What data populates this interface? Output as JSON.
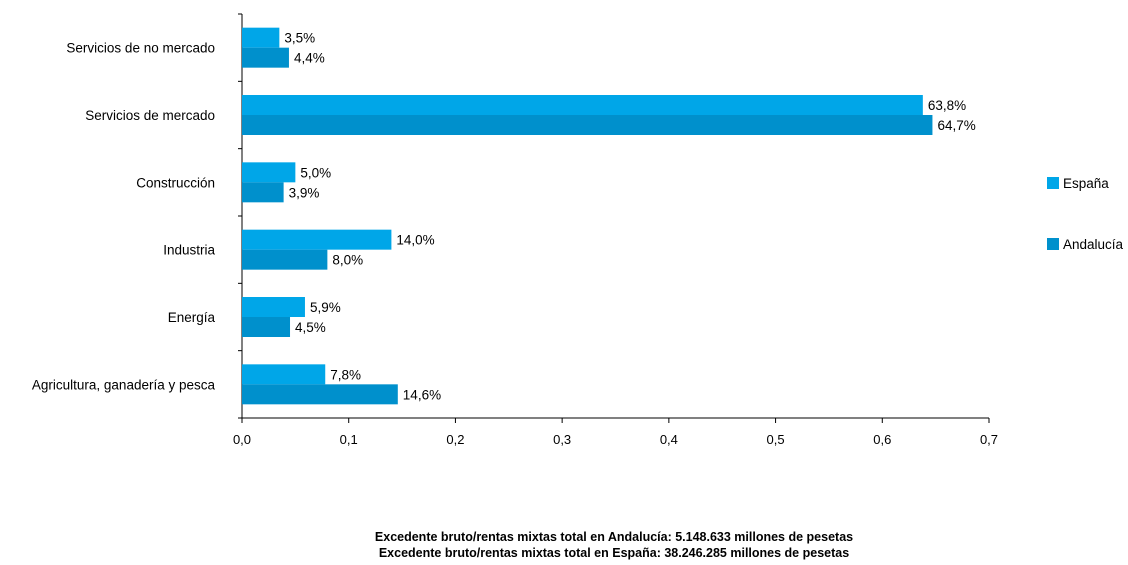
{
  "chart_data": {
    "type": "bar",
    "orientation": "horizontal",
    "categories": [
      "Servicios de no mercado",
      "Servicios de mercado",
      "Construcción",
      "Industria",
      "Energía",
      "Agricultura, ganadería y pesca"
    ],
    "series": [
      {
        "name": "España",
        "color": "#00A6E8",
        "values": [
          0.035,
          0.638,
          0.05,
          0.14,
          0.059,
          0.078
        ],
        "labels": [
          "3,5%",
          "63,8%",
          "5,0%",
          "14,0%",
          "5,9%",
          "7,8%"
        ]
      },
      {
        "name": "Andalucía",
        "color": "#0090CC",
        "values": [
          0.044,
          0.647,
          0.039,
          0.08,
          0.045,
          0.146
        ],
        "labels": [
          "4,4%",
          "64,7%",
          "3,9%",
          "8,0%",
          "4,5%",
          "14,6%"
        ]
      }
    ],
    "x_ticks": [
      "0,0",
      "0,1",
      "0,2",
      "0,3",
      "0,4",
      "0,5",
      "0,6",
      "0,7"
    ],
    "xlim": [
      0,
      0.7
    ],
    "legend_position": "right",
    "grid": false
  },
  "footnotes": [
    "Excedente bruto/rentas mixtas total en Andalucía: 5.148.633 millones de pesetas",
    "Excedente bruto/rentas mixtas total en España: 38.246.285 millones de pesetas"
  ]
}
